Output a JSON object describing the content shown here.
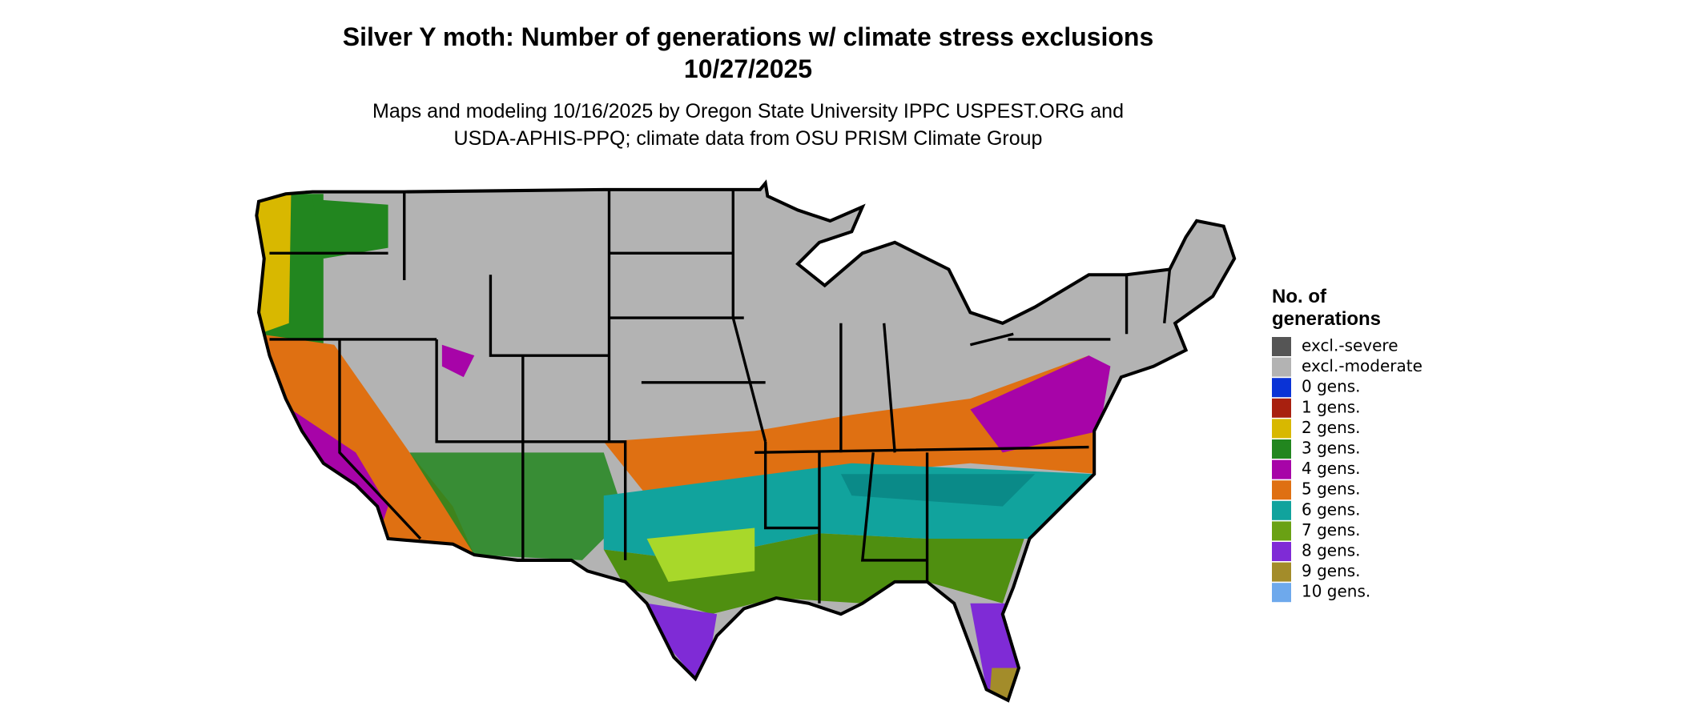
{
  "title": [
    "Silver Y moth: Number of generations w/ climate stress exclusions",
    "10/27/2025"
  ],
  "subtitle": [
    "Maps and modeling 10/16/2025 by Oregon State University IPPC USPEST.ORG and",
    "USDA-APHIS-PPQ; climate data from OSU PRISM Climate Group"
  ],
  "legend": {
    "title": [
      "No. of",
      "generations"
    ],
    "items": [
      {
        "label": "excl.-severe",
        "color": "#555555"
      },
      {
        "label": "excl.-moderate",
        "color": "#b3b3b3"
      },
      {
        "label": "0 gens.",
        "color": "#0a33d6"
      },
      {
        "label": "1 gens.",
        "color": "#a8200f"
      },
      {
        "label": "2 gens.",
        "color": "#d8b800"
      },
      {
        "label": "3 gens.",
        "color": "#22861f"
      },
      {
        "label": "4 gens.",
        "color": "#a704a8"
      },
      {
        "label": "5 gens.",
        "color": "#df7012"
      },
      {
        "label": "6 gens.",
        "color": "#11a39d"
      },
      {
        "label": "7 gens.",
        "color": "#6aa114"
      },
      {
        "label": "8 gens.",
        "color": "#7f2bd6"
      },
      {
        "label": "9 gens.",
        "color": "#a38c2a"
      },
      {
        "label": "10 gens.",
        "color": "#6ea9ec"
      }
    ]
  }
}
